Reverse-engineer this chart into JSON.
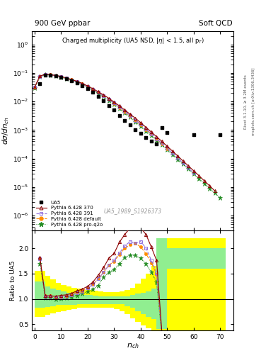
{
  "title_left": "900 GeV ppbar",
  "title_right": "Soft QCD",
  "plot_title": "Charged multiplicity (UA5 NSD, |\\u03b7| < 1.5, all p_{T})",
  "ylabel_main": "d\\sigma/dn_{ch}",
  "ylabel_ratio": "Ratio to UA5",
  "xlabel": "n_{ch}",
  "watermark": "UA5_1989_S1926373",
  "ylim_main": [
    3e-07,
    3.0
  ],
  "ylim_ratio": [
    0.38,
    2.35
  ],
  "xlim": [
    -1,
    75
  ],
  "ua5_nch": [
    2,
    4,
    6,
    8,
    10,
    12,
    14,
    16,
    18,
    20,
    22,
    24,
    26,
    28,
    30,
    32,
    34,
    36,
    38,
    40,
    42,
    44,
    46,
    48,
    50,
    60,
    70
  ],
  "ua5_val": [
    0.043,
    0.085,
    0.082,
    0.078,
    0.07,
    0.062,
    0.053,
    0.044,
    0.036,
    0.028,
    0.021,
    0.015,
    0.0105,
    0.0072,
    0.005,
    0.0033,
    0.0022,
    0.0015,
    0.00105,
    0.00075,
    0.00055,
    0.00042,
    0.00033,
    0.0012,
    0.0008,
    0.0007,
    0.0007
  ],
  "p370_nch": [
    0,
    2,
    4,
    6,
    8,
    10,
    12,
    14,
    16,
    18,
    20,
    22,
    24,
    26,
    28,
    30,
    32,
    34,
    36,
    38,
    40,
    42,
    44,
    46,
    48,
    50,
    52,
    54,
    56,
    58,
    60,
    62,
    64,
    66,
    68
  ],
  "p370_val": [
    0.032,
    0.078,
    0.09,
    0.087,
    0.082,
    0.075,
    0.067,
    0.059,
    0.051,
    0.043,
    0.035,
    0.028,
    0.022,
    0.017,
    0.013,
    0.0095,
    0.007,
    0.005,
    0.0036,
    0.0026,
    0.0018,
    0.00125,
    0.00085,
    0.00058,
    0.0004,
    0.00027,
    0.000182,
    0.000122,
    8.2e-05,
    5.5e-05,
    3.7e-05,
    2.5e-05,
    1.65e-05,
    1.1e-05,
    7.3e-06
  ],
  "p391_nch": [
    0,
    2,
    4,
    6,
    8,
    10,
    12,
    14,
    16,
    18,
    20,
    22,
    24,
    26,
    28,
    30,
    32,
    34,
    36,
    38,
    40,
    42,
    44,
    46,
    48,
    50,
    52,
    54,
    56,
    58,
    60
  ],
  "p391_val": [
    0.032,
    0.077,
    0.089,
    0.086,
    0.08,
    0.073,
    0.065,
    0.057,
    0.049,
    0.041,
    0.034,
    0.027,
    0.021,
    0.016,
    0.012,
    0.0088,
    0.0063,
    0.0045,
    0.0032,
    0.0022,
    0.0016,
    0.0011,
    0.00074,
    0.0005,
    0.00034,
    0.00023,
    0.000155,
    0.000104,
    7e-05,
    4.6e-05,
    3.1e-05
  ],
  "pdef_nch": [
    0,
    2,
    4,
    6,
    8,
    10,
    12,
    14,
    16,
    18,
    20,
    22,
    24,
    26,
    28,
    30,
    32,
    34,
    36,
    38,
    40,
    42,
    44,
    46,
    48,
    50
  ],
  "pdef_val": [
    0.032,
    0.077,
    0.09,
    0.087,
    0.081,
    0.074,
    0.066,
    0.058,
    0.05,
    0.042,
    0.034,
    0.027,
    0.021,
    0.016,
    0.012,
    0.0087,
    0.0062,
    0.0044,
    0.0031,
    0.0022,
    0.00152,
    0.00104,
    0.00072,
    0.00049,
    0.00033,
    0.00022
  ],
  "pproq2o_nch": [
    0,
    2,
    4,
    6,
    8,
    10,
    12,
    14,
    16,
    18,
    20,
    22,
    24,
    26,
    28,
    30,
    32,
    34,
    36,
    38,
    40,
    42,
    44,
    46,
    48,
    50,
    52,
    54,
    56,
    58,
    60,
    62,
    64,
    66,
    68,
    70
  ],
  "pproq2o_val": [
    0.03,
    0.073,
    0.087,
    0.084,
    0.078,
    0.071,
    0.063,
    0.055,
    0.047,
    0.04,
    0.032,
    0.025,
    0.019,
    0.015,
    0.011,
    0.0079,
    0.0056,
    0.004,
    0.0028,
    0.00195,
    0.00135,
    0.00093,
    0.00064,
    0.00044,
    0.0003,
    0.000205,
    0.000139,
    9.4e-05,
    6.4e-05,
    4.3e-05,
    2.9e-05,
    1.96e-05,
    1.33e-05,
    9e-06,
    6.1e-06,
    4.1e-06
  ],
  "color_370": "#8B0000",
  "color_391": "#9370DB",
  "color_def": "#FF8C00",
  "color_proq2o": "#228B22",
  "ratio_nch_steps": [
    0,
    2,
    4,
    6,
    8,
    10,
    12,
    14,
    16,
    18,
    20,
    22,
    24,
    26,
    28,
    30,
    32,
    34,
    36,
    38,
    40,
    42,
    44,
    46,
    48,
    50,
    52,
    54,
    56,
    58,
    60,
    62,
    64,
    66,
    68,
    70,
    72
  ],
  "green_lo": [
    0.82,
    0.82,
    0.84,
    0.86,
    0.88,
    0.88,
    0.88,
    0.88,
    0.9,
    0.9,
    0.9,
    0.9,
    0.9,
    0.9,
    0.9,
    0.9,
    0.9,
    0.85,
    0.82,
    0.75,
    0.7,
    0.65,
    0.6,
    0.4,
    0.4,
    1.6,
    1.6,
    1.6,
    1.6,
    1.6,
    1.6,
    1.6,
    1.6,
    1.6,
    1.6,
    1.6,
    1.6
  ],
  "green_hi": [
    1.35,
    1.35,
    1.25,
    1.2,
    1.18,
    1.15,
    1.12,
    1.1,
    1.1,
    1.08,
    1.08,
    1.06,
    1.05,
    1.05,
    1.05,
    1.05,
    1.05,
    1.05,
    1.08,
    1.1,
    1.12,
    1.15,
    1.2,
    2.2,
    2.2,
    2.0,
    2.0,
    2.0,
    2.0,
    2.0,
    2.0,
    2.0,
    2.0,
    2.0,
    2.0,
    2.0,
    2.0
  ],
  "yellow_lo": [
    0.65,
    0.65,
    0.68,
    0.72,
    0.74,
    0.76,
    0.78,
    0.8,
    0.82,
    0.82,
    0.82,
    0.82,
    0.82,
    0.82,
    0.82,
    0.8,
    0.75,
    0.7,
    0.62,
    0.55,
    0.48,
    0.42,
    0.38,
    0.38,
    0.38,
    0.38,
    0.38,
    0.38,
    0.38,
    0.38,
    0.38,
    0.38,
    0.38,
    0.38,
    0.38,
    0.38,
    0.38
  ],
  "yellow_hi": [
    1.55,
    1.55,
    1.45,
    1.38,
    1.32,
    1.28,
    1.24,
    1.22,
    1.2,
    1.18,
    1.18,
    1.16,
    1.15,
    1.14,
    1.14,
    1.14,
    1.15,
    1.18,
    1.22,
    1.3,
    1.4,
    1.5,
    1.65,
    2.2,
    2.2,
    2.2,
    2.2,
    2.2,
    2.2,
    2.2,
    2.2,
    2.2,
    2.2,
    2.2,
    2.2,
    2.2,
    2.2
  ]
}
